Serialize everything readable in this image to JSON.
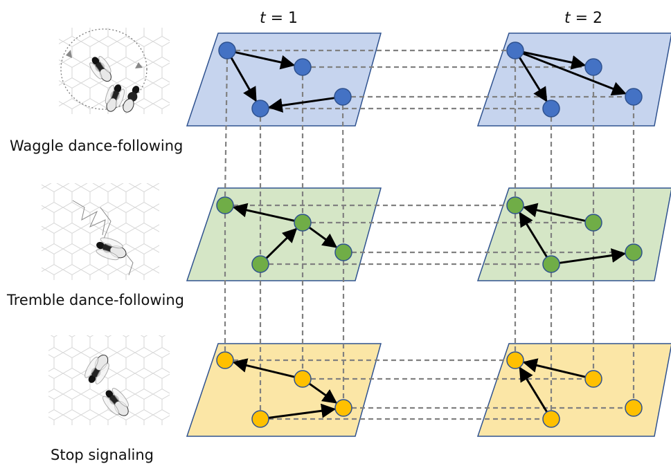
{
  "columns": [
    {
      "var": "t",
      "rest": " = 1"
    },
    {
      "var": "t",
      "rest": " = 2"
    }
  ],
  "layers": [
    {
      "label": "Waggle dance-following",
      "fill": "#c6d4ee",
      "node_color": "#4472c4",
      "icon": "waggle-dance-bee-icon"
    },
    {
      "label": "Tremble dance-following",
      "fill": "#d5e6c6",
      "node_color": "#70ad47",
      "icon": "tremble-dance-bee-icon"
    },
    {
      "label": "Stop signaling",
      "fill": "#fbe6a6",
      "node_color": "#ffc000",
      "icon": "stop-signal-bees-icon"
    }
  ],
  "colors": {
    "plane_border": "#2f528f",
    "node_border": "#2f528f",
    "arrow": "#000000",
    "coupling_line": "#808080"
  }
}
